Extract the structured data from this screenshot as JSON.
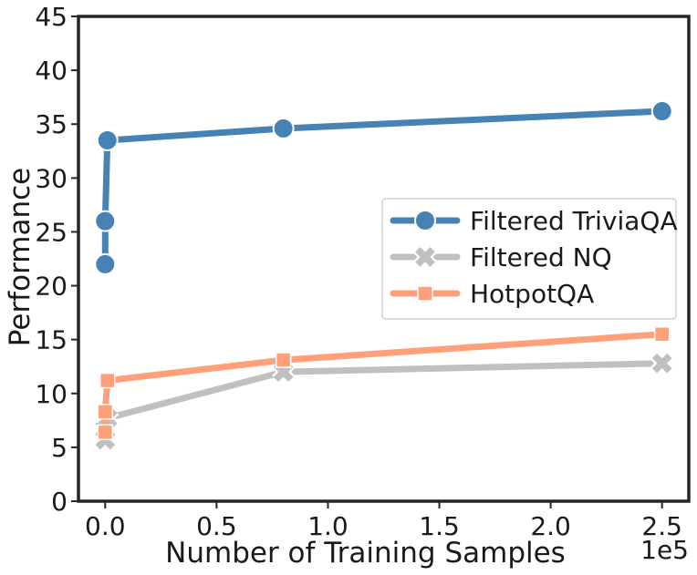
{
  "chart_data": {
    "type": "line",
    "title": "",
    "xlabel": "Number of Training Samples",
    "ylabel": "Performance",
    "x_offset_label": "1e5",
    "xlim": [
      -0.12,
      2.62
    ],
    "ylim": [
      0,
      45
    ],
    "xticks": [
      0.0,
      0.5,
      1.0,
      1.5,
      2.0,
      2.5
    ],
    "xtick_labels": [
      "0.0",
      "0.5",
      "1.0",
      "1.5",
      "2.0",
      "2.5"
    ],
    "yticks": [
      0,
      5,
      10,
      15,
      20,
      25,
      30,
      35,
      40,
      45
    ],
    "ytick_labels": [
      "0",
      "5",
      "10",
      "15",
      "20",
      "25",
      "30",
      "35",
      "40",
      "45"
    ],
    "grid": false,
    "legend_position": "center-right",
    "series": [
      {
        "name": "Filtered TriviaQA",
        "color": "#4682b4",
        "marker": "circle",
        "x": [
          0.0,
          0.0,
          0.01,
          0.8,
          2.5
        ],
        "y": [
          22.0,
          26.0,
          33.5,
          34.6,
          36.2
        ]
      },
      {
        "name": "Filtered NQ",
        "color": "#c0c0c0",
        "marker": "x",
        "x": [
          0.0,
          0.0,
          0.01,
          0.8,
          2.5
        ],
        "y": [
          5.7,
          6.7,
          7.7,
          12.0,
          12.8
        ]
      },
      {
        "name": "HotpotQA",
        "color": "#ffa07a",
        "marker": "square",
        "x": [
          0.0,
          0.0,
          0.01,
          0.8,
          2.5
        ],
        "y": [
          6.4,
          8.3,
          11.2,
          13.1,
          15.5
        ]
      }
    ]
  }
}
